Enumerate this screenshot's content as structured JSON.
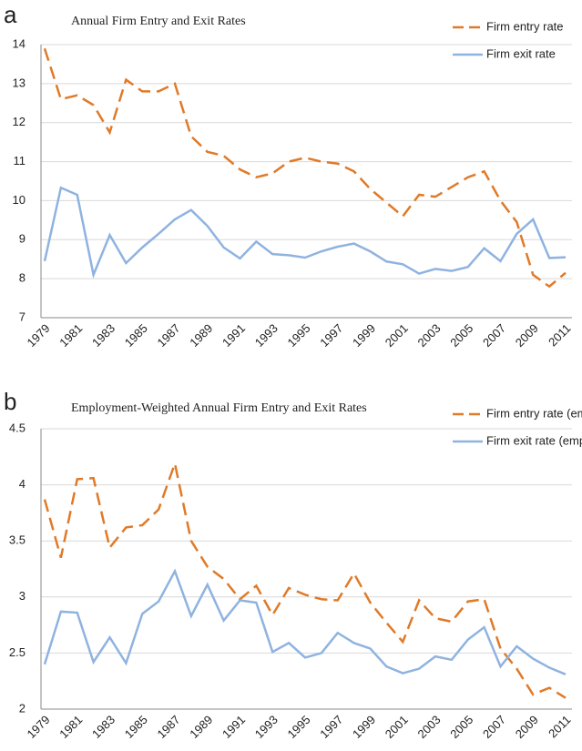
{
  "chart_data": [
    {
      "type": "line",
      "label": "a",
      "title": "Annual Firm Entry and Exit Rates",
      "categories": [
        "1979",
        null,
        "1981",
        null,
        "1983",
        null,
        "1985",
        null,
        "1987",
        null,
        "1989",
        null,
        "1991",
        null,
        "1993",
        null,
        "1995",
        null,
        "1997",
        null,
        "1999",
        null,
        "2001",
        null,
        "2003",
        null,
        "2005",
        null,
        "2007",
        null,
        "2009",
        null,
        "2011"
      ],
      "series": [
        {
          "name": "Firm entry rate",
          "color": "#e07a28",
          "dashed": true,
          "values": [
            13.9,
            12.6,
            12.7,
            12.45,
            11.75,
            13.1,
            12.8,
            12.8,
            13.0,
            11.65,
            11.25,
            11.15,
            10.8,
            10.6,
            10.7,
            11.0,
            11.1,
            11.0,
            10.95,
            10.75,
            10.3,
            9.95,
            9.6,
            10.15,
            10.1,
            10.35,
            10.6,
            10.75,
            10.0,
            9.45,
            8.1,
            7.8,
            8.15
          ]
        },
        {
          "name": "Firm exit rate",
          "color": "#8fb3e0",
          "dashed": false,
          "values": [
            8.45,
            10.33,
            10.15,
            8.1,
            9.12,
            8.4,
            8.8,
            9.15,
            9.52,
            9.76,
            9.35,
            8.8,
            8.52,
            8.95,
            8.63,
            8.6,
            8.54,
            8.7,
            8.82,
            8.9,
            8.7,
            8.44,
            8.37,
            8.13,
            8.25,
            8.2,
            8.3,
            8.78,
            8.45,
            9.15,
            9.52,
            8.53,
            8.55
          ]
        }
      ],
      "ylim": [
        7,
        14
      ],
      "yticks": [
        7,
        8,
        9,
        10,
        11,
        12,
        13,
        14
      ],
      "grid": true,
      "legend": "top-right"
    },
    {
      "type": "line",
      "label": "b",
      "title": "Employment-Weighted Annual Firm Entry and Exit Rates",
      "categories": [
        "1979",
        null,
        "1981",
        null,
        "1983",
        null,
        "1985",
        null,
        "1987",
        null,
        "1989",
        null,
        "1991",
        null,
        "1993",
        null,
        "1995",
        null,
        "1997",
        null,
        "1999",
        null,
        "2001",
        null,
        "2003",
        null,
        "2005",
        null,
        "2007",
        null,
        "2009",
        null,
        "2011"
      ],
      "series": [
        {
          "name": "Firm entry rate (emp)",
          "color": "#e07a28",
          "dashed": true,
          "values": [
            3.87,
            3.35,
            4.05,
            4.06,
            3.44,
            3.62,
            3.64,
            3.78,
            4.19,
            3.5,
            3.27,
            3.16,
            2.98,
            3.1,
            2.84,
            3.08,
            3.02,
            2.98,
            2.97,
            3.21,
            2.95,
            2.77,
            2.6,
            2.97,
            2.81,
            2.78,
            2.96,
            2.98,
            2.54,
            2.36,
            2.13,
            2.19,
            2.1
          ]
        },
        {
          "name": "Firm exit rate (emp)",
          "color": "#8fb3e0",
          "dashed": false,
          "values": [
            2.4,
            2.87,
            2.86,
            2.42,
            2.64,
            2.41,
            2.85,
            2.96,
            3.23,
            2.83,
            3.11,
            2.79,
            2.97,
            2.95,
            2.51,
            2.59,
            2.46,
            2.5,
            2.68,
            2.59,
            2.54,
            2.38,
            2.32,
            2.36,
            2.47,
            2.44,
            2.62,
            2.73,
            2.38,
            2.56,
            2.45,
            2.37,
            2.31
          ]
        }
      ],
      "ylim": [
        2,
        4.5
      ],
      "yticks": [
        2,
        2.5,
        3,
        3.5,
        4,
        4.5
      ],
      "grid": true,
      "legend": "top-right"
    }
  ]
}
